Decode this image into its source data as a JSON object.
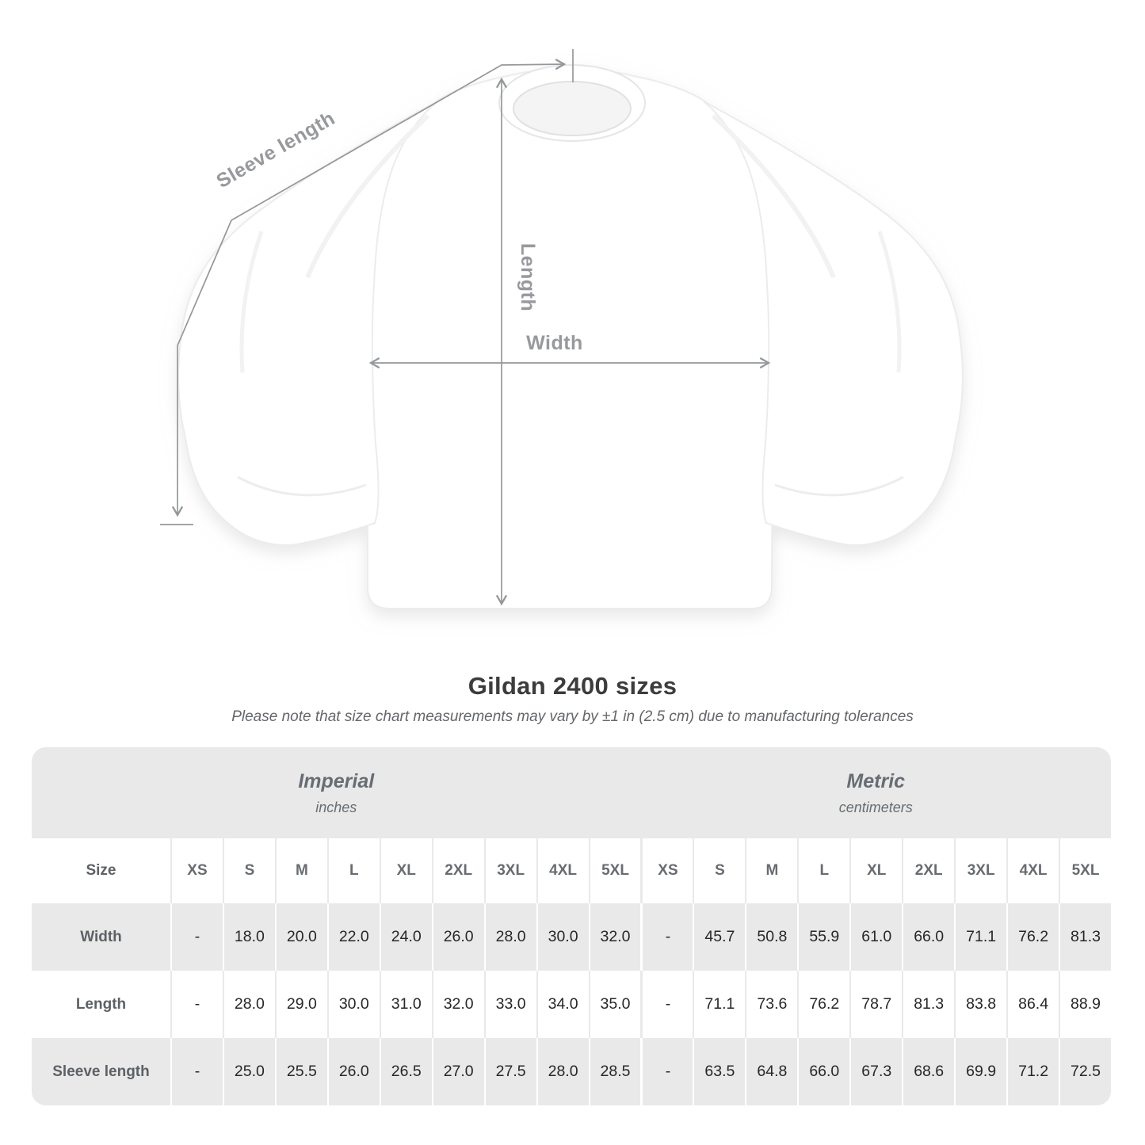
{
  "title": "Gildan 2400 sizes",
  "note": "Please note that size chart measurements may vary by ±1 in (2.5 cm) due to manufacturing tolerances",
  "diagram": {
    "sleeve_length_label": "Sleeve length",
    "length_label": "Length",
    "width_label": "Width",
    "line_color": "#95989b",
    "label_color": "#97999c",
    "shirt_color": "#ffffff"
  },
  "table": {
    "sections": [
      {
        "name": "Imperial",
        "unit": "inches"
      },
      {
        "name": "Metric",
        "unit": "centimeters"
      }
    ],
    "size_label": "Size",
    "sizes": [
      "XS",
      "S",
      "M",
      "L",
      "XL",
      "2XL",
      "3XL",
      "4XL",
      "5XL"
    ],
    "rows": [
      {
        "label": "Width",
        "imperial": [
          "-",
          "18.0",
          "20.0",
          "22.0",
          "24.0",
          "26.0",
          "28.0",
          "30.0",
          "32.0"
        ],
        "metric": [
          "-",
          "45.7",
          "50.8",
          "55.9",
          "61.0",
          "66.0",
          "71.1",
          "76.2",
          "81.3"
        ]
      },
      {
        "label": "Length",
        "imperial": [
          "-",
          "28.0",
          "29.0",
          "30.0",
          "31.0",
          "32.0",
          "33.0",
          "34.0",
          "35.0"
        ],
        "metric": [
          "-",
          "71.1",
          "73.6",
          "76.2",
          "78.7",
          "81.3",
          "83.8",
          "86.4",
          "88.9"
        ]
      },
      {
        "label": "Sleeve length",
        "imperial": [
          "-",
          "25.0",
          "25.5",
          "26.0",
          "26.5",
          "27.0",
          "27.5",
          "28.0",
          "28.5"
        ],
        "metric": [
          "-",
          "63.5",
          "64.8",
          "66.0",
          "67.3",
          "68.6",
          "69.9",
          "71.2",
          "72.5"
        ]
      }
    ]
  }
}
